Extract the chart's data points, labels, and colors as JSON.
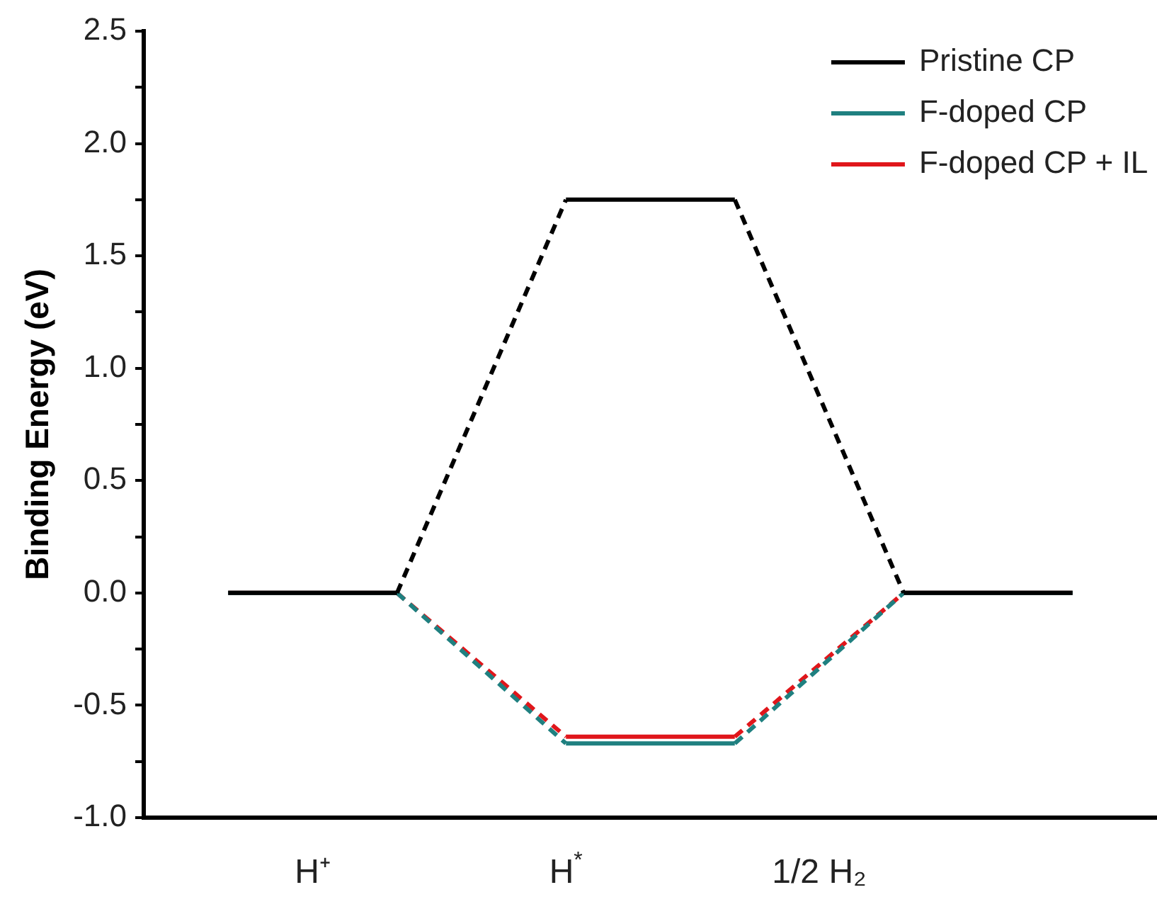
{
  "chart_data": {
    "type": "line",
    "ylabel": "Binding Energy (eV)",
    "categories": [
      null,
      "H⁺",
      null,
      null,
      "H$^{*}$",
      null,
      null,
      "1/2 H₂",
      null,
      null,
      null
    ],
    "ylim": [
      -1.0,
      2.5
    ],
    "yticks": [
      {
        "value": -1,
        "label": "-1.0"
      },
      {
        "value": -0.75,
        "label": null
      },
      -0.5,
      {
        "value": -0.25,
        "label": null
      },
      {
        "value": 0,
        "label": "0.0"
      },
      {
        "value": 0.25,
        "label": null
      },
      0.5,
      {
        "value": 0.75,
        "label": null
      },
      {
        "value": 1,
        "label": "1.0"
      },
      {
        "value": 1.25,
        "label": null
      },
      1.5,
      {
        "value": 1.75,
        "label": null
      },
      {
        "value": 2,
        "label": "2.0"
      },
      {
        "value": 2.25,
        "label": null
      },
      2.5
    ],
    "grid": false,
    "legend": "top right",
    "marker": "none",
    "line_style": "dashed",
    "series": [
      {
        "name": "Pristine CP",
        "color": "#000000",
        "values": [
          0,
          0,
          0,
          null,
          1.75,
          1.75,
          1.75,
          null,
          0,
          0,
          0
        ]
      },
      {
        "name": "F-doped CP",
        "color": "#1f8080",
        "values": [
          0,
          0,
          0,
          null,
          -0.67,
          -0.67,
          -0.67,
          null,
          0,
          0,
          0
        ]
      },
      {
        "name": "F-doped CP + IL",
        "color": "#e0161b",
        "values": [
          0,
          0,
          0,
          null,
          -0.64,
          -0.64,
          -0.64,
          null,
          0,
          0,
          0
        ]
      }
    ]
  }
}
